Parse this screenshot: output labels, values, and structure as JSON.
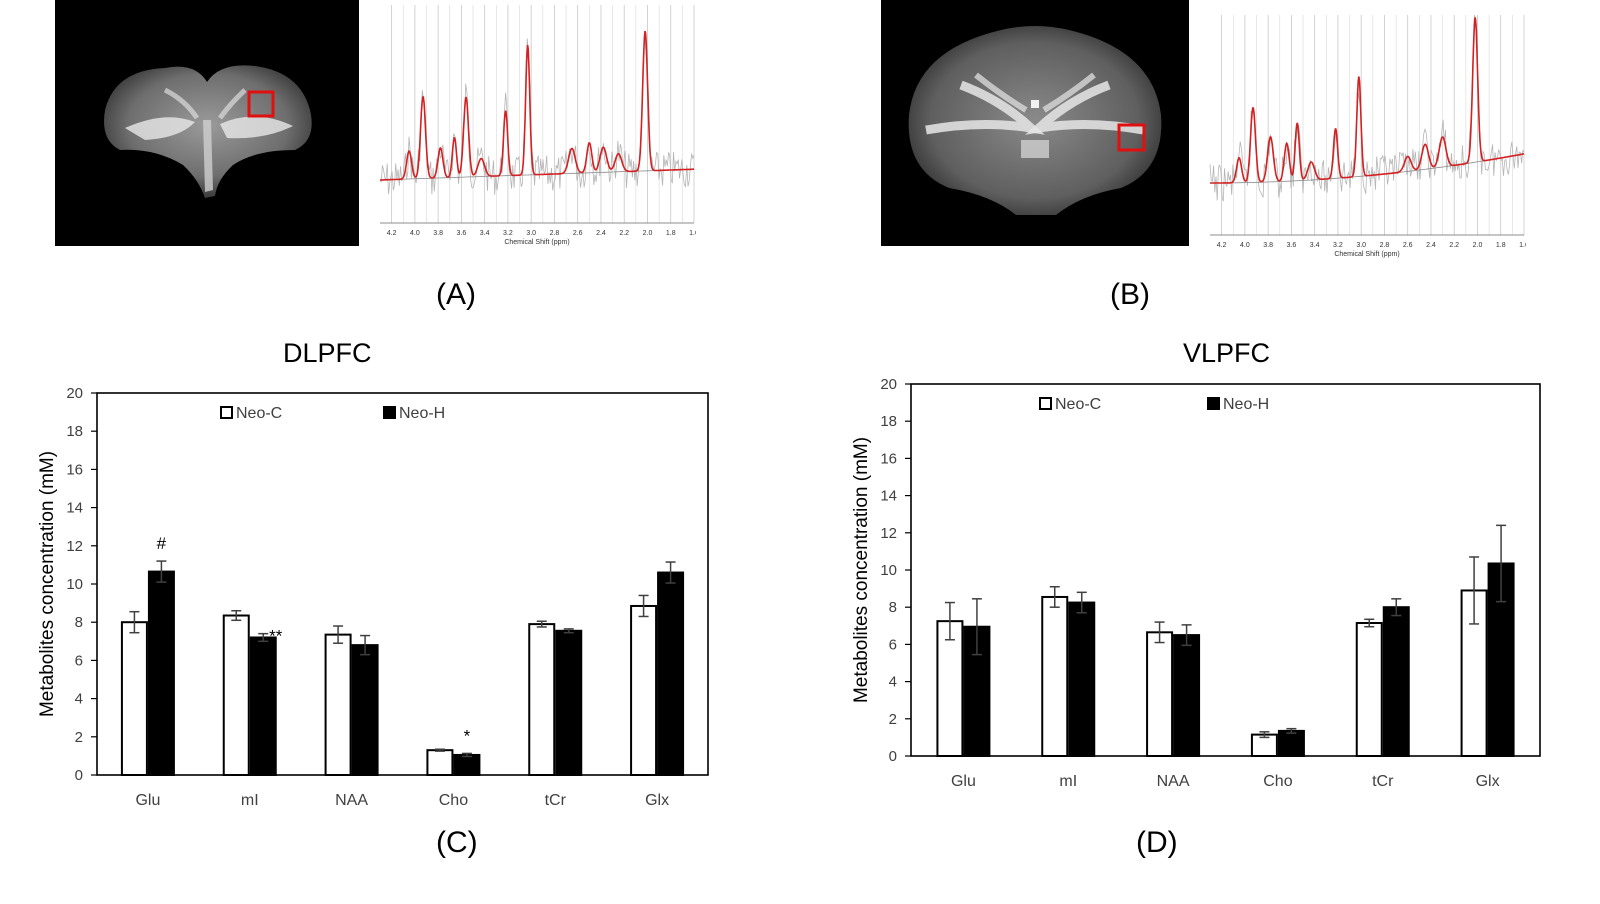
{
  "panels": {
    "a_label": "(A)",
    "b_label": "(B)",
    "c_label": "(C)",
    "d_label": "(D)"
  },
  "spectra": [
    {
      "panel": "A",
      "xlabel": "Chemical Shift (ppm)",
      "ticks": [
        "4.2",
        "4.0",
        "3.8",
        "3.6",
        "3.4",
        "3.2",
        "3.0",
        "2.8",
        "2.6",
        "2.4",
        "2.2",
        "2.0",
        "1.8",
        "1.6"
      ]
    },
    {
      "panel": "B",
      "xlabel": "Chemical Shift (ppm)",
      "ticks": [
        "4.2",
        "4.0",
        "3.8",
        "3.6",
        "3.4",
        "3.2",
        "3.0",
        "2.8",
        "2.6",
        "2.4",
        "2.2",
        "2.0",
        "1.8",
        "1.6"
      ]
    }
  ],
  "colors": {
    "fit_line": "#d42020",
    "roi_box": "#e01010",
    "neo_c_fill": "#ffffff",
    "neo_h_fill": "#000000"
  },
  "chart_data": [
    {
      "type": "bar",
      "title": "DLPFC",
      "ylabel": "Metabolites concentration (mM)",
      "xlabel": "",
      "ylim": [
        0,
        20
      ],
      "yticks": [
        0,
        2,
        4,
        6,
        8,
        10,
        12,
        14,
        16,
        18,
        20
      ],
      "categories": [
        "Glu",
        "mI",
        "NAA",
        "Cho",
        "tCr",
        "Glx"
      ],
      "legend_placement": "top",
      "series": [
        {
          "name": "Neo-C",
          "values": [
            8.0,
            8.35,
            7.35,
            1.3,
            7.9,
            8.85
          ],
          "errors": [
            0.55,
            0.25,
            0.45,
            0.05,
            0.15,
            0.55
          ]
        },
        {
          "name": "Neo-H",
          "values": [
            10.65,
            7.2,
            6.8,
            1.05,
            7.55,
            10.6
          ],
          "errors": [
            0.55,
            0.2,
            0.5,
            0.08,
            0.1,
            0.55
          ]
        }
      ],
      "annotations": [
        {
          "category": "Glu",
          "series": "Neo-H",
          "text": "#"
        },
        {
          "category": "mI",
          "series": "Neo-H",
          "text": "**"
        },
        {
          "category": "Cho",
          "series": "Neo-H",
          "text": "*"
        }
      ]
    },
    {
      "type": "bar",
      "title": "VLPFC",
      "ylabel": "Metabolites concentration (mM)",
      "xlabel": "",
      "ylim": [
        0,
        20
      ],
      "yticks": [
        0,
        2,
        4,
        6,
        8,
        10,
        12,
        14,
        16,
        18,
        20
      ],
      "categories": [
        "Glu",
        "mI",
        "NAA",
        "Cho",
        "tCr",
        "Glx"
      ],
      "legend_placement": "top",
      "series": [
        {
          "name": "Neo-C",
          "values": [
            7.25,
            8.55,
            6.65,
            1.15,
            7.15,
            8.9
          ],
          "errors": [
            1.0,
            0.55,
            0.55,
            0.15,
            0.2,
            1.8
          ]
        },
        {
          "name": "Neo-H",
          "values": [
            6.95,
            8.25,
            6.5,
            1.35,
            8.0,
            10.35
          ],
          "errors": [
            1.5,
            0.55,
            0.55,
            0.12,
            0.45,
            2.05
          ]
        }
      ],
      "annotations": []
    }
  ]
}
